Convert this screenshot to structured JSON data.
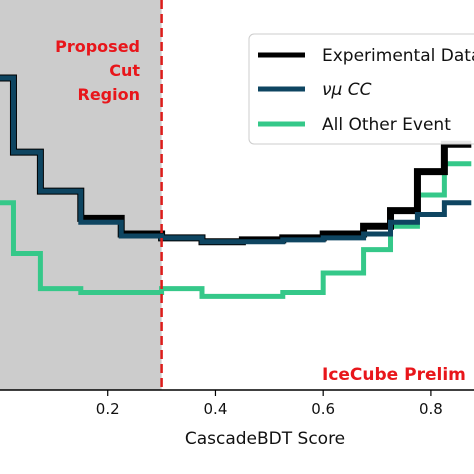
{
  "chart_data": {
    "type": "line",
    "step": true,
    "xlabel": "CascadeBDT Score",
    "x_ticks": [
      0.2,
      0.4,
      0.6,
      0.8
    ],
    "x_tick_labels": [
      "0.2",
      "0.4",
      "0.6",
      "0.8"
    ],
    "xlim": [
      0.0,
      0.88
    ],
    "ylim": [
      0.0,
      1.0
    ],
    "bin_edges": [
      0.0,
      0.025,
      0.075,
      0.15,
      0.225,
      0.3,
      0.375,
      0.45,
      0.525,
      0.6,
      0.675,
      0.725,
      0.775,
      0.825,
      0.875
    ],
    "series": [
      {
        "name": "Experimental Data",
        "color": "#000000",
        "values": [
          0.8,
          0.61,
          0.51,
          0.44,
          0.4,
          0.39,
          0.38,
          0.385,
          0.39,
          0.4,
          0.42,
          0.46,
          0.56,
          0.63
        ]
      },
      {
        "name": "$\\nu_\\mu$ CC",
        "legend_display": "νμ CC",
        "color": "#0e4561",
        "values": [
          0.8,
          0.61,
          0.51,
          0.43,
          0.395,
          0.39,
          0.38,
          0.38,
          0.385,
          0.39,
          0.4,
          0.43,
          0.45,
          0.48
        ]
      },
      {
        "name": "All Other Events",
        "legend_display": "All Other Event",
        "color": "#35c889",
        "values": [
          0.48,
          0.35,
          0.26,
          0.25,
          0.25,
          0.26,
          0.24,
          0.24,
          0.25,
          0.3,
          0.36,
          0.42,
          0.5,
          0.58
        ]
      }
    ],
    "cut_line": {
      "x": 0.3,
      "color": "#dd1c1a",
      "style": "dashed"
    },
    "shaded_region": {
      "from": 0.0,
      "to": 0.3,
      "color": "#cccccc"
    },
    "annotations": {
      "cut_region_lines": [
        "Proposed",
        "Cut",
        "Region"
      ],
      "preliminary": "IceCube Prelim"
    },
    "legend_position": "top-right"
  }
}
